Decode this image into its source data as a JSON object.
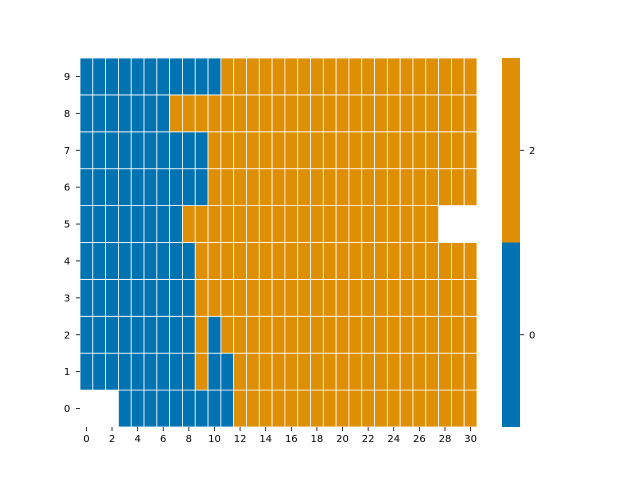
{
  "chart_data": {
    "type": "heatmap",
    "title": "",
    "xlabel": "",
    "ylabel": "",
    "x": [
      0,
      1,
      2,
      3,
      4,
      5,
      6,
      7,
      8,
      9,
      10,
      11,
      12,
      13,
      14,
      15,
      16,
      17,
      18,
      19,
      20,
      21,
      22,
      23,
      24,
      25,
      26,
      27,
      28,
      29,
      30
    ],
    "y": [
      0,
      1,
      2,
      3,
      4,
      5,
      6,
      7,
      8,
      9
    ],
    "x_tick_labels": [
      "0",
      "2",
      "4",
      "6",
      "8",
      "10",
      "12",
      "14",
      "16",
      "18",
      "20",
      "22",
      "24",
      "26",
      "28",
      "30"
    ],
    "y_tick_labels": [
      "0",
      "1",
      "2",
      "3",
      "4",
      "5",
      "6",
      "7",
      "8",
      "9"
    ],
    "values_by_row": [
      [
        null,
        null,
        null,
        0,
        0,
        0,
        0,
        0,
        0,
        0,
        0,
        0,
        2,
        2,
        2,
        2,
        2,
        2,
        2,
        2,
        2,
        2,
        2,
        2,
        2,
        2,
        2,
        2,
        2,
        2,
        2
      ],
      [
        0,
        0,
        0,
        0,
        0,
        0,
        0,
        0,
        0,
        2,
        0,
        0,
        2,
        2,
        2,
        2,
        2,
        2,
        2,
        2,
        2,
        2,
        2,
        2,
        2,
        2,
        2,
        2,
        2,
        2,
        2
      ],
      [
        0,
        0,
        0,
        0,
        0,
        0,
        0,
        0,
        0,
        2,
        0,
        2,
        2,
        2,
        2,
        2,
        2,
        2,
        2,
        2,
        2,
        2,
        2,
        2,
        2,
        2,
        2,
        2,
        2,
        2,
        2
      ],
      [
        0,
        0,
        0,
        0,
        0,
        0,
        0,
        0,
        0,
        2,
        2,
        2,
        2,
        2,
        2,
        2,
        2,
        2,
        2,
        2,
        2,
        2,
        2,
        2,
        2,
        2,
        2,
        2,
        2,
        2,
        2
      ],
      [
        0,
        0,
        0,
        0,
        0,
        0,
        0,
        0,
        0,
        2,
        2,
        2,
        2,
        2,
        2,
        2,
        2,
        2,
        2,
        2,
        2,
        2,
        2,
        2,
        2,
        2,
        2,
        2,
        2,
        2,
        2
      ],
      [
        0,
        0,
        0,
        0,
        0,
        0,
        0,
        0,
        2,
        2,
        2,
        2,
        2,
        2,
        2,
        2,
        2,
        2,
        2,
        2,
        2,
        2,
        2,
        2,
        2,
        2,
        2,
        2,
        null,
        null,
        null
      ],
      [
        0,
        0,
        0,
        0,
        0,
        0,
        0,
        0,
        0,
        0,
        2,
        2,
        2,
        2,
        2,
        2,
        2,
        2,
        2,
        2,
        2,
        2,
        2,
        2,
        2,
        2,
        2,
        2,
        2,
        2,
        2
      ],
      [
        0,
        0,
        0,
        0,
        0,
        0,
        0,
        0,
        0,
        0,
        2,
        2,
        2,
        2,
        2,
        2,
        2,
        2,
        2,
        2,
        2,
        2,
        2,
        2,
        2,
        2,
        2,
        2,
        2,
        2,
        2
      ],
      [
        0,
        0,
        0,
        0,
        0,
        0,
        0,
        2,
        2,
        2,
        2,
        2,
        2,
        2,
        2,
        2,
        2,
        2,
        2,
        2,
        2,
        2,
        2,
        2,
        2,
        2,
        2,
        2,
        2,
        2,
        2
      ],
      [
        0,
        0,
        0,
        0,
        0,
        0,
        0,
        0,
        0,
        0,
        0,
        2,
        2,
        2,
        2,
        2,
        2,
        2,
        2,
        2,
        2,
        2,
        2,
        2,
        2,
        2,
        2,
        2,
        2,
        2,
        2
      ]
    ],
    "colors": {
      "0": "#0173b2",
      "2": "#de8f05"
    },
    "colorbar": {
      "tick_labels": [
        "0",
        "2"
      ],
      "placement": "right"
    },
    "grid": false,
    "legend": "none"
  }
}
